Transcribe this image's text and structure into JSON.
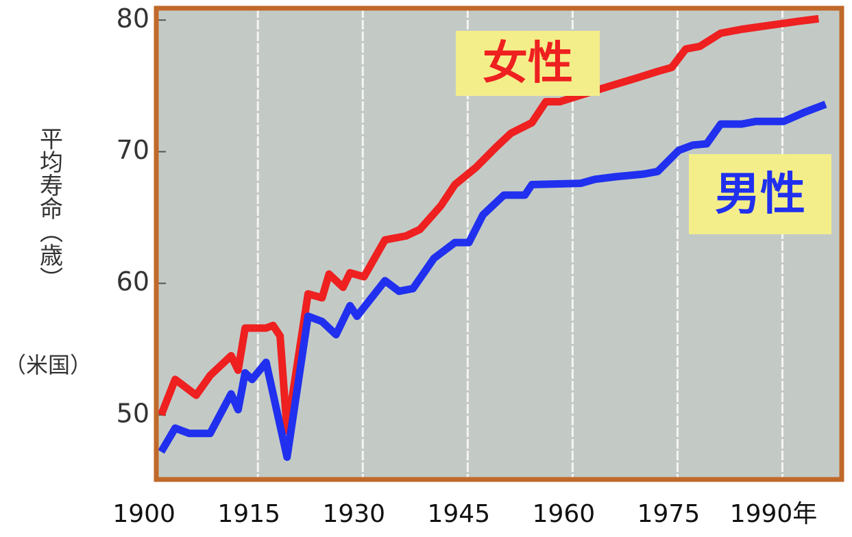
{
  "chart_data": {
    "type": "line",
    "ylabel": "平均寿命（歳）",
    "ylabel_note": "（米国）",
    "xlim": [
      1899.3,
      1997.3
    ],
    "xticks": [
      1900,
      1915,
      1930,
      1945,
      1960,
      1975,
      {
        "value": 1990,
        "label": "1990年"
      }
    ],
    "ylim": [
      45.1,
      80.9
    ],
    "yticks": [
      50,
      60,
      70,
      80
    ],
    "grid": "x",
    "series": [
      {
        "name": "女性",
        "color": "#ee2020",
        "x": [
          1900,
          1902,
          1905,
          1907,
          1910,
          1911,
          1912,
          1915,
          1916,
          1917,
          1918,
          1921,
          1923,
          1924,
          1926,
          1927,
          1929,
          1932,
          1935,
          1937,
          1940,
          1942,
          1945,
          1948,
          1950,
          1953,
          1955,
          1957,
          1960,
          1963,
          1968,
          1971,
          1973,
          1975,
          1977,
          1980,
          1983,
          1987,
          1991,
          1994
        ],
        "values": [
          50.0,
          52.7,
          51.5,
          53.0,
          54.5,
          53.4,
          56.6,
          56.6,
          56.8,
          56.0,
          48.8,
          59.2,
          58.9,
          60.7,
          59.7,
          60.8,
          60.5,
          63.3,
          63.6,
          64.1,
          65.9,
          67.5,
          68.8,
          70.4,
          71.4,
          72.2,
          73.8,
          73.8,
          74.3,
          74.8,
          75.6,
          76.1,
          76.4,
          77.8,
          78.0,
          79.0,
          79.3,
          79.6,
          79.9,
          80.1
        ]
      },
      {
        "name": "男性",
        "color": "#2030ee",
        "x": [
          1900,
          1902,
          1904,
          1907,
          1910,
          1911,
          1912,
          1913,
          1915,
          1918,
          1921,
          1923,
          1925,
          1927,
          1928,
          1932,
          1934,
          1936,
          1939,
          1942,
          1944,
          1946,
          1949,
          1952,
          1953,
          1960,
          1962,
          1965,
          1969,
          1971,
          1974,
          1976,
          1978,
          1980,
          1983,
          1985,
          1989,
          1992,
          1995
        ],
        "values": [
          47.2,
          49.0,
          48.6,
          48.6,
          51.6,
          50.4,
          53.2,
          52.7,
          54.0,
          46.8,
          57.5,
          57.1,
          56.1,
          58.3,
          57.5,
          60.2,
          59.4,
          59.6,
          61.9,
          63.1,
          63.1,
          65.2,
          66.7,
          66.7,
          67.5,
          67.6,
          67.9,
          68.1,
          68.3,
          68.5,
          70.1,
          70.5,
          70.6,
          72.1,
          72.1,
          72.3,
          72.3,
          73.0,
          73.6
        ]
      }
    ]
  }
}
